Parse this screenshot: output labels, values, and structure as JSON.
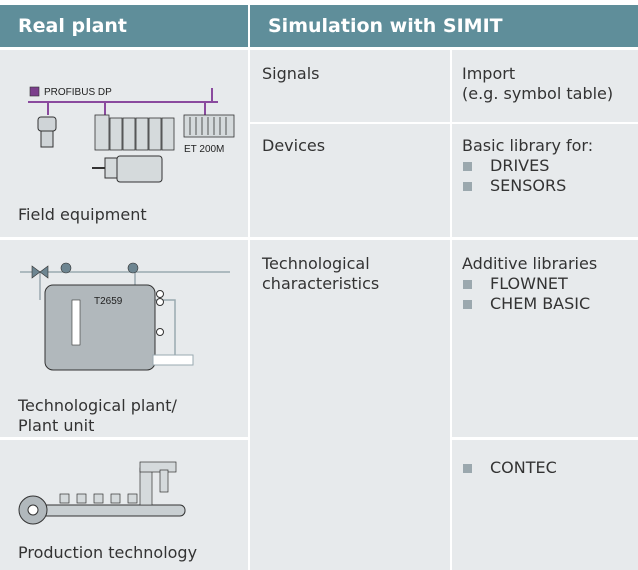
{
  "header": {
    "left": "Real plant",
    "right": "Simulation with SIMIT"
  },
  "plant": [
    {
      "label": [
        "Field equipment"
      ],
      "diagram_labels": [
        "PROFIBUS DP",
        "ET 200M"
      ]
    },
    {
      "label": [
        "Technological plant/",
        "Plant unit"
      ],
      "diagram_labels": [
        "T2659"
      ]
    },
    {
      "label": [
        "Production technology"
      ]
    }
  ],
  "simulation": {
    "signals": {
      "name": [
        "Signals"
      ],
      "detail": [
        "Import",
        "(e.g. symbol table)"
      ]
    },
    "devices": {
      "name": [
        "Devices"
      ],
      "heading": "Basic library for:",
      "items": [
        "DRIVES",
        "SENSORS"
      ]
    },
    "technological": {
      "name": [
        "Technological",
        "characteristics"
      ],
      "heading": "Additive libraries",
      "items": [
        "FLOWNET",
        "CHEM BASIC"
      ],
      "extra_items": [
        "CONTEC"
      ]
    }
  }
}
